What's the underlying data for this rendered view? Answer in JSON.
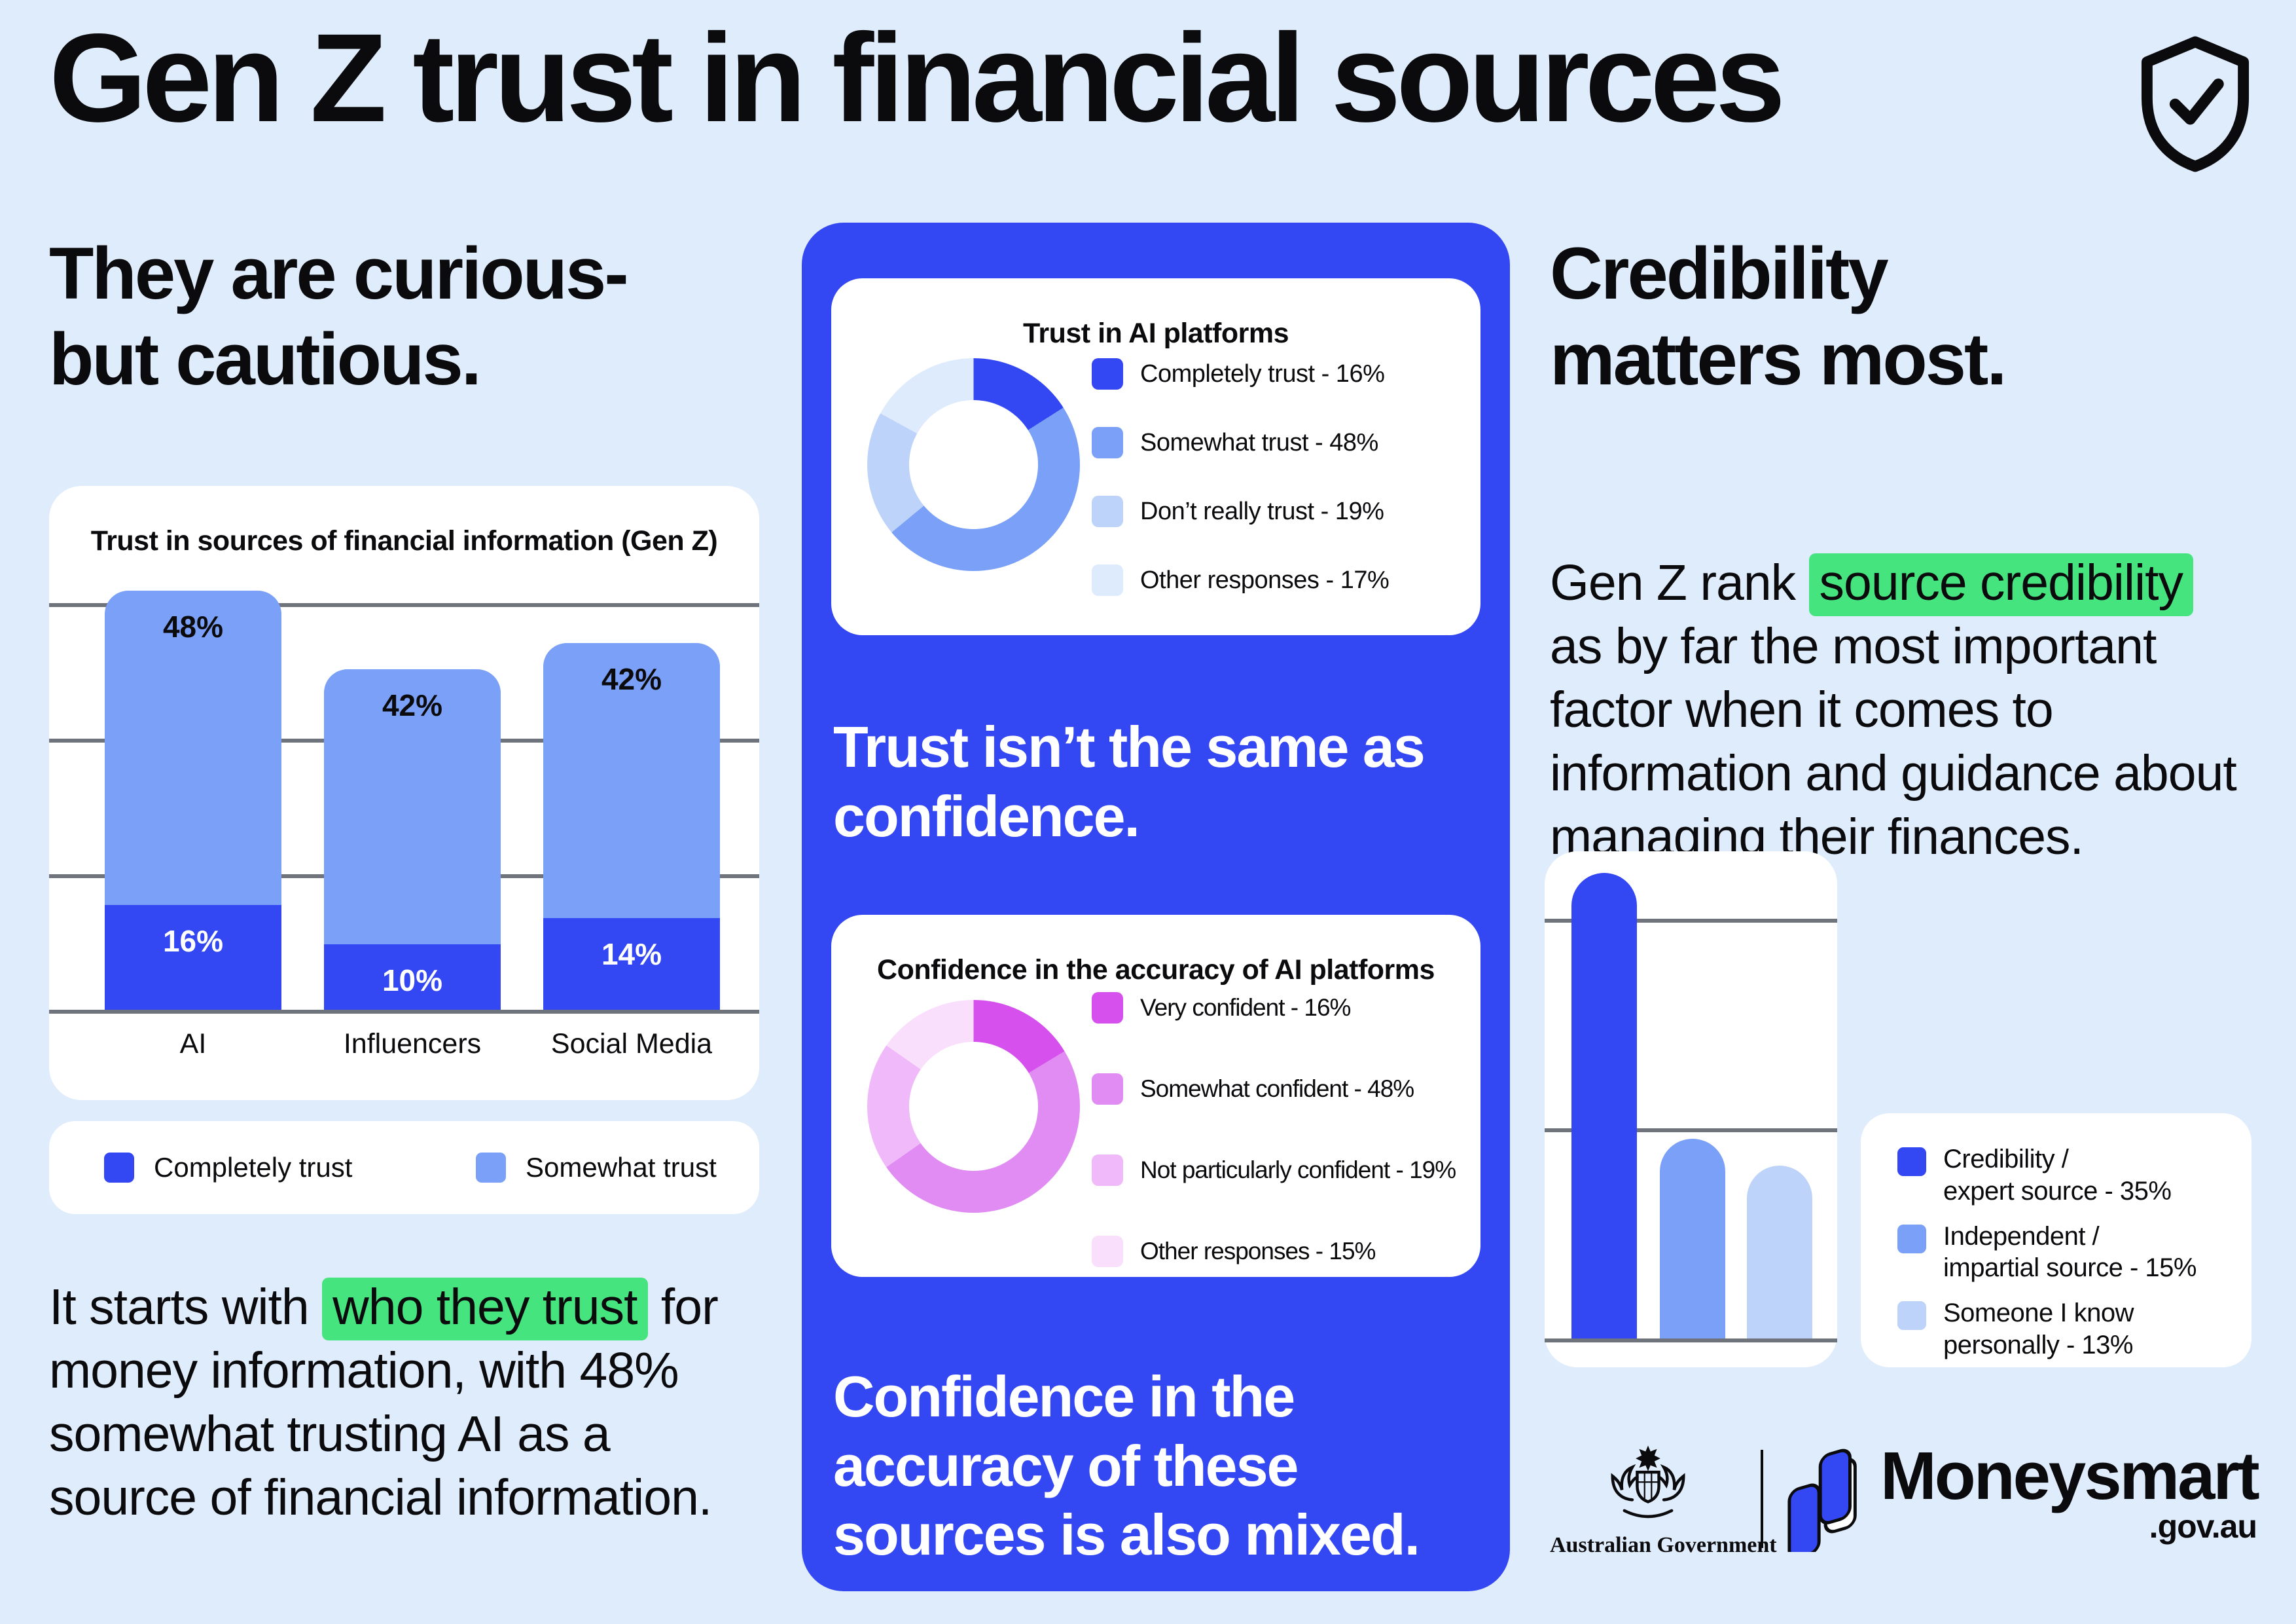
{
  "colors": {
    "page_bg": "#DFECFB",
    "ink": "#0B0B0E",
    "panel_blue": "#3347F2",
    "blue_dark": "#3347F2",
    "blue_mid": "#7AA0F8",
    "blue_light": "#BED3FA",
    "blue_faint": "#DDEBFC",
    "pink_dark": "#D650EE",
    "pink_mid": "#E18CF3",
    "pink_light": "#F0B9F9",
    "pink_faint": "#F9DFFC",
    "green_highlight": "#45E47F",
    "gridline": "#6F747C"
  },
  "header": {
    "title": "Gen Z trust in financial sources",
    "icon": "shield-check-icon"
  },
  "left": {
    "heading": "They are curious-\nbut cautious.",
    "chart_title": "Trust in sources of financial information (Gen Z)",
    "legend": [
      {
        "label": "Completely trust",
        "color": "#3347F2"
      },
      {
        "label": "Somewhat trust",
        "color": "#7AA0F8"
      }
    ],
    "paragraph": [
      {
        "text": "It starts with "
      },
      {
        "text": "who they trust",
        "highlight": true
      },
      {
        "text": " for money information, with 48% somewhat trusting AI as a source of financial information."
      }
    ]
  },
  "middle": {
    "card1_title": "Trust in AI platforms",
    "mid_text": "Trust isn’t the same as confidence.",
    "card2_title": "Confidence in the accuracy of AI platforms",
    "bottom_text": "Confidence in the accuracy of these sources is also mixed."
  },
  "right": {
    "heading": "Credibility\nmatters most.",
    "paragraph": [
      {
        "text": "Gen Z rank "
      },
      {
        "text": "source credibility",
        "highlight": true
      },
      {
        "text": " as by far the most important factor when it comes to information and guidance about managing their finances."
      }
    ],
    "legend": [
      {
        "label": "Credibility /\nexpert source - 35%",
        "color": "#3347F2"
      },
      {
        "label": "Independent /\nimpartial source - 15%",
        "color": "#7AA0F8"
      },
      {
        "label": "Someone I know\npersonally - 13%",
        "color": "#BED3FA"
      }
    ]
  },
  "footer": {
    "gov_label": "Australian Government",
    "brand": "Moneysmart",
    "brand_suffix": ".gov.au"
  },
  "chart_data": [
    {
      "id": "trust_in_sources",
      "type": "bar",
      "stacked": true,
      "title": "Trust in sources of financial information (Gen Z)",
      "categories": [
        "AI",
        "Influencers",
        "Social Media"
      ],
      "series": [
        {
          "name": "Completely trust",
          "color": "#3347F2",
          "values": [
            16,
            10,
            14
          ]
        },
        {
          "name": "Somewhat trust",
          "color": "#7AA0F8",
          "values": [
            48,
            42,
            42
          ]
        }
      ],
      "value_labels": true,
      "ylim": [
        0,
        62
      ],
      "grid": true,
      "legend_position": "below"
    },
    {
      "id": "trust_in_ai_platforms",
      "type": "pie",
      "subtype": "donut",
      "title": "Trust in AI platforms",
      "slices": [
        {
          "label": "Completely trust - 16%",
          "value": 16,
          "color": "#3347F2"
        },
        {
          "label": "Somewhat trust - 48%",
          "value": 48,
          "color": "#7AA0F8"
        },
        {
          "label": "Don’t really trust - 19%",
          "value": 19,
          "color": "#BED3FA"
        },
        {
          "label": "Other responses - 17%",
          "value": 17,
          "color": "#DDEBFC"
        }
      ],
      "legend_position": "right"
    },
    {
      "id": "confidence_in_ai_accuracy",
      "type": "pie",
      "subtype": "donut",
      "title": "Confidence in the accuracy of AI platforms",
      "slices": [
        {
          "label": "Very confident - 16%",
          "value": 16,
          "color": "#D650EE"
        },
        {
          "label": "Somewhat confident - 48%",
          "value": 48,
          "color": "#E18CF3"
        },
        {
          "label": "Not particularly confident - 19%",
          "value": 19,
          "color": "#F0B9F9"
        },
        {
          "label": "Other responses - 15%",
          "value": 15,
          "color": "#F9DFFC"
        }
      ],
      "legend_position": "right"
    },
    {
      "id": "most_important_factor",
      "type": "bar",
      "stacked": false,
      "title": "",
      "categories": [
        "Credibility / expert source",
        "Independent / impartial source",
        "Someone I know personally"
      ],
      "values": [
        35,
        15,
        13
      ],
      "colors": [
        "#3347F2",
        "#7AA0F8",
        "#BED3FA"
      ],
      "ylim": [
        0,
        39
      ],
      "grid": true,
      "legend_position": "right"
    }
  ]
}
